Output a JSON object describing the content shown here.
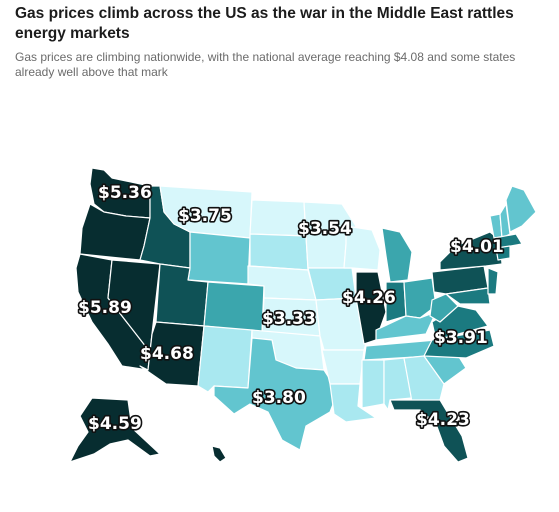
{
  "header": {
    "title": "Gas prices climb across the US as the war in the Middle East rattles energy markets",
    "subtitle": "Gas prices are climbing nationwide, with the national average reaching $4.08 and some states already well above that mark"
  },
  "colors": {
    "lightest": "#d7f7fb",
    "light": "#a9e8f0",
    "mid_light": "#62c5cf",
    "mid": "#3ba6ad",
    "dark": "#1b7a80",
    "darker": "#0f5256",
    "darkest": "#072d30"
  },
  "price_labels": [
    {
      "id": "wa",
      "text": "$5.36"
    },
    {
      "id": "mt",
      "text": "$3.75"
    },
    {
      "id": "mn",
      "text": "$3.54"
    },
    {
      "id": "ny",
      "text": "$4.01"
    },
    {
      "id": "ca",
      "text": "$5.89"
    },
    {
      "id": "il",
      "text": "$4.26"
    },
    {
      "id": "ks",
      "text": "$3.33"
    },
    {
      "id": "nc",
      "text": "$3.91"
    },
    {
      "id": "az",
      "text": "$4.68"
    },
    {
      "id": "tx",
      "text": "$3.80"
    },
    {
      "id": "ak",
      "text": "$4.59"
    },
    {
      "id": "fl",
      "text": "$4.23"
    }
  ]
}
